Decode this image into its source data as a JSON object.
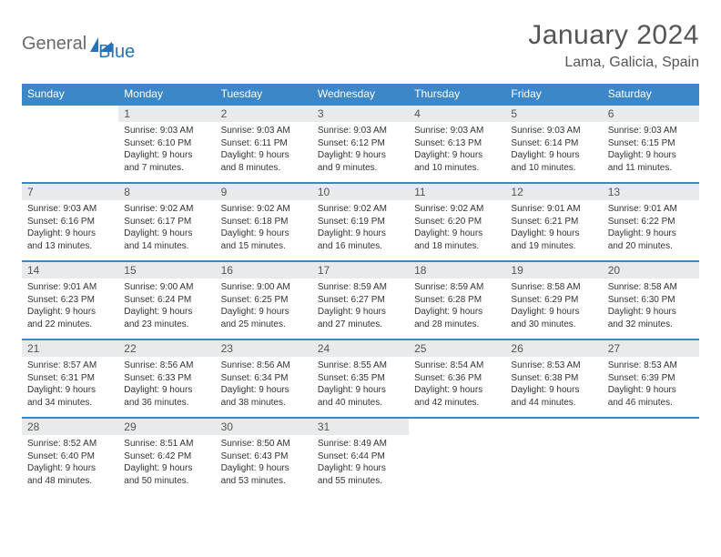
{
  "logo": {
    "general": "General",
    "blue": "Blue"
  },
  "title": "January 2024",
  "location": "Lama, Galicia, Spain",
  "colors": {
    "header_bg": "#3b87c8",
    "header_text": "#ffffff",
    "daynum_bg": "#e9eaeb",
    "border": "#3b87c8",
    "body_text": "#333333",
    "title_text": "#555555"
  },
  "weekdays": [
    "Sunday",
    "Monday",
    "Tuesday",
    "Wednesday",
    "Thursday",
    "Friday",
    "Saturday"
  ],
  "weeks": [
    [
      {
        "n": "",
        "lines": []
      },
      {
        "n": "1",
        "lines": [
          "Sunrise: 9:03 AM",
          "Sunset: 6:10 PM",
          "Daylight: 9 hours",
          "and 7 minutes."
        ]
      },
      {
        "n": "2",
        "lines": [
          "Sunrise: 9:03 AM",
          "Sunset: 6:11 PM",
          "Daylight: 9 hours",
          "and 8 minutes."
        ]
      },
      {
        "n": "3",
        "lines": [
          "Sunrise: 9:03 AM",
          "Sunset: 6:12 PM",
          "Daylight: 9 hours",
          "and 9 minutes."
        ]
      },
      {
        "n": "4",
        "lines": [
          "Sunrise: 9:03 AM",
          "Sunset: 6:13 PM",
          "Daylight: 9 hours",
          "and 10 minutes."
        ]
      },
      {
        "n": "5",
        "lines": [
          "Sunrise: 9:03 AM",
          "Sunset: 6:14 PM",
          "Daylight: 9 hours",
          "and 10 minutes."
        ]
      },
      {
        "n": "6",
        "lines": [
          "Sunrise: 9:03 AM",
          "Sunset: 6:15 PM",
          "Daylight: 9 hours",
          "and 11 minutes."
        ]
      }
    ],
    [
      {
        "n": "7",
        "lines": [
          "Sunrise: 9:03 AM",
          "Sunset: 6:16 PM",
          "Daylight: 9 hours",
          "and 13 minutes."
        ]
      },
      {
        "n": "8",
        "lines": [
          "Sunrise: 9:02 AM",
          "Sunset: 6:17 PM",
          "Daylight: 9 hours",
          "and 14 minutes."
        ]
      },
      {
        "n": "9",
        "lines": [
          "Sunrise: 9:02 AM",
          "Sunset: 6:18 PM",
          "Daylight: 9 hours",
          "and 15 minutes."
        ]
      },
      {
        "n": "10",
        "lines": [
          "Sunrise: 9:02 AM",
          "Sunset: 6:19 PM",
          "Daylight: 9 hours",
          "and 16 minutes."
        ]
      },
      {
        "n": "11",
        "lines": [
          "Sunrise: 9:02 AM",
          "Sunset: 6:20 PM",
          "Daylight: 9 hours",
          "and 18 minutes."
        ]
      },
      {
        "n": "12",
        "lines": [
          "Sunrise: 9:01 AM",
          "Sunset: 6:21 PM",
          "Daylight: 9 hours",
          "and 19 minutes."
        ]
      },
      {
        "n": "13",
        "lines": [
          "Sunrise: 9:01 AM",
          "Sunset: 6:22 PM",
          "Daylight: 9 hours",
          "and 20 minutes."
        ]
      }
    ],
    [
      {
        "n": "14",
        "lines": [
          "Sunrise: 9:01 AM",
          "Sunset: 6:23 PM",
          "Daylight: 9 hours",
          "and 22 minutes."
        ]
      },
      {
        "n": "15",
        "lines": [
          "Sunrise: 9:00 AM",
          "Sunset: 6:24 PM",
          "Daylight: 9 hours",
          "and 23 minutes."
        ]
      },
      {
        "n": "16",
        "lines": [
          "Sunrise: 9:00 AM",
          "Sunset: 6:25 PM",
          "Daylight: 9 hours",
          "and 25 minutes."
        ]
      },
      {
        "n": "17",
        "lines": [
          "Sunrise: 8:59 AM",
          "Sunset: 6:27 PM",
          "Daylight: 9 hours",
          "and 27 minutes."
        ]
      },
      {
        "n": "18",
        "lines": [
          "Sunrise: 8:59 AM",
          "Sunset: 6:28 PM",
          "Daylight: 9 hours",
          "and 28 minutes."
        ]
      },
      {
        "n": "19",
        "lines": [
          "Sunrise: 8:58 AM",
          "Sunset: 6:29 PM",
          "Daylight: 9 hours",
          "and 30 minutes."
        ]
      },
      {
        "n": "20",
        "lines": [
          "Sunrise: 8:58 AM",
          "Sunset: 6:30 PM",
          "Daylight: 9 hours",
          "and 32 minutes."
        ]
      }
    ],
    [
      {
        "n": "21",
        "lines": [
          "Sunrise: 8:57 AM",
          "Sunset: 6:31 PM",
          "Daylight: 9 hours",
          "and 34 minutes."
        ]
      },
      {
        "n": "22",
        "lines": [
          "Sunrise: 8:56 AM",
          "Sunset: 6:33 PM",
          "Daylight: 9 hours",
          "and 36 minutes."
        ]
      },
      {
        "n": "23",
        "lines": [
          "Sunrise: 8:56 AM",
          "Sunset: 6:34 PM",
          "Daylight: 9 hours",
          "and 38 minutes."
        ]
      },
      {
        "n": "24",
        "lines": [
          "Sunrise: 8:55 AM",
          "Sunset: 6:35 PM",
          "Daylight: 9 hours",
          "and 40 minutes."
        ]
      },
      {
        "n": "25",
        "lines": [
          "Sunrise: 8:54 AM",
          "Sunset: 6:36 PM",
          "Daylight: 9 hours",
          "and 42 minutes."
        ]
      },
      {
        "n": "26",
        "lines": [
          "Sunrise: 8:53 AM",
          "Sunset: 6:38 PM",
          "Daylight: 9 hours",
          "and 44 minutes."
        ]
      },
      {
        "n": "27",
        "lines": [
          "Sunrise: 8:53 AM",
          "Sunset: 6:39 PM",
          "Daylight: 9 hours",
          "and 46 minutes."
        ]
      }
    ],
    [
      {
        "n": "28",
        "lines": [
          "Sunrise: 8:52 AM",
          "Sunset: 6:40 PM",
          "Daylight: 9 hours",
          "and 48 minutes."
        ]
      },
      {
        "n": "29",
        "lines": [
          "Sunrise: 8:51 AM",
          "Sunset: 6:42 PM",
          "Daylight: 9 hours",
          "and 50 minutes."
        ]
      },
      {
        "n": "30",
        "lines": [
          "Sunrise: 8:50 AM",
          "Sunset: 6:43 PM",
          "Daylight: 9 hours",
          "and 53 minutes."
        ]
      },
      {
        "n": "31",
        "lines": [
          "Sunrise: 8:49 AM",
          "Sunset: 6:44 PM",
          "Daylight: 9 hours",
          "and 55 minutes."
        ]
      },
      {
        "n": "",
        "lines": []
      },
      {
        "n": "",
        "lines": []
      },
      {
        "n": "",
        "lines": []
      }
    ]
  ]
}
